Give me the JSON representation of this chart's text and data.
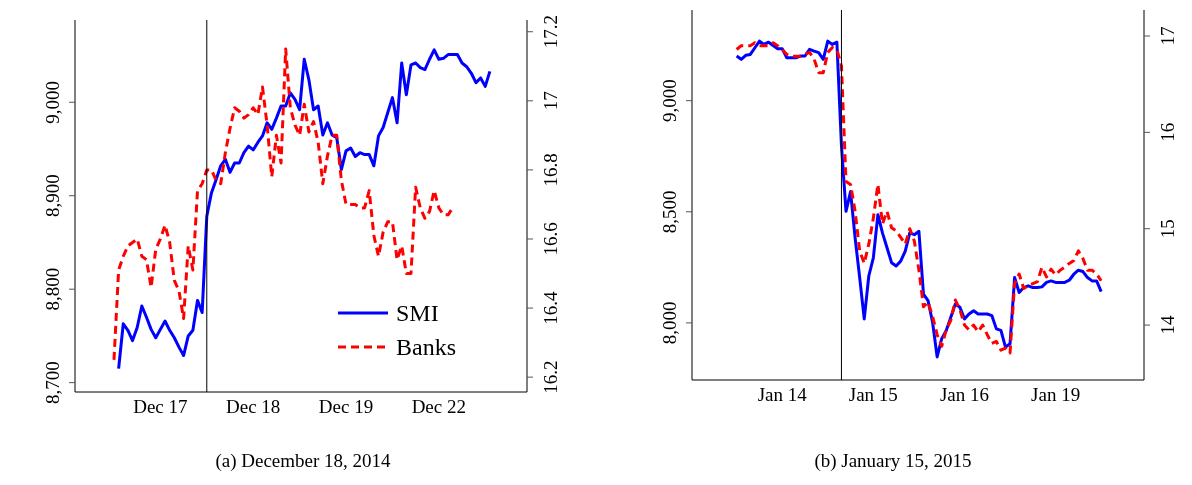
{
  "chart_data": [
    {
      "type": "line",
      "annotations": [
        "(a) December 18, 2014"
      ],
      "legend": "bottom right",
      "categories": [
        null,
        null,
        null,
        null,
        null,
        null,
        null,
        null,
        null,
        null,
        "Dec 17",
        null,
        null,
        null,
        null,
        null,
        null,
        null,
        null,
        null,
        null,
        null,
        null,
        null,
        null,
        null,
        null,
        null,
        null,
        null,
        "Dec 18",
        null,
        null,
        null,
        null,
        null,
        null,
        null,
        null,
        null,
        null,
        null,
        null,
        null,
        null,
        null,
        null,
        null,
        null,
        null,
        "Dec 19",
        null,
        null,
        null,
        null,
        null,
        null,
        null,
        null,
        null,
        null,
        null,
        null,
        null,
        null,
        null,
        null,
        null,
        null,
        null,
        "Dec 22",
        null,
        null,
        null,
        null,
        null,
        null,
        null,
        null,
        null,
        null,
        null
      ],
      "ylim": [
        8690,
        9088
      ],
      "yticks": [
        {
          "value": 8700,
          "label": "8,700"
        },
        {
          "value": 8800,
          "label": "8,800"
        },
        {
          "value": 8900,
          "label": "8,900"
        },
        {
          "value": 9000,
          "label": "9,000"
        }
      ],
      "y2lim": [
        16.157,
        17.234
      ],
      "y2ticks": [
        16.2,
        16.4,
        16.6,
        16.8,
        17,
        17.2
      ],
      "series": [
        {
          "name": "SMI",
          "type": "line",
          "color": "#0000ff",
          "line_style": "solid",
          "values": [
            null,
            8715,
            8763,
            8756,
            8745,
            8759,
            8782,
            8770,
            8757,
            8748,
            8757,
            8766,
            8756,
            8748,
            8738,
            8729,
            8750,
            8756,
            8788,
            8775,
            8878,
            8903,
            8917,
            8932,
            8939,
            8925,
            8935,
            8935,
            8946,
            8953,
            8949,
            8957,
            8964,
            8978,
            8971,
            8983,
            8996,
            8996,
            9010,
            9003,
            8992,
            9046,
            9024,
            8992,
            8996,
            8965,
            8978,
            8965,
            8962,
            8928,
            8948,
            8951,
            8942,
            8946,
            8944,
            8944,
            8932,
            8964,
            8973,
            8989,
            9005,
            8978,
            9042,
            9008,
            9040,
            9042,
            9037,
            9035,
            9046,
            9056,
            9046,
            9047,
            9051,
            9051,
            9051,
            9042,
            9038,
            9031,
            9021,
            9026,
            9017,
            9033
          ]
        },
        {
          "name": "Banks",
          "type": "line",
          "axis": "y2",
          "color": "#ff0000",
          "line_style": "dashed",
          "values": [
            16.25,
            16.51,
            16.55,
            16.58,
            16.59,
            16.6,
            16.55,
            16.54,
            16.46,
            16.57,
            16.6,
            16.64,
            16.59,
            16.48,
            16.45,
            16.37,
            16.58,
            16.51,
            16.74,
            16.76,
            16.8,
            16.8,
            16.77,
            16.76,
            16.85,
            16.92,
            16.98,
            16.97,
            16.95,
            16.96,
            16.98,
            16.96,
            17.04,
            16.93,
            16.78,
            16.9,
            16.82,
            17.15,
            16.98,
            16.93,
            16.9,
            16.99,
            16.91,
            16.94,
            16.88,
            16.76,
            16.84,
            16.9,
            16.9,
            16.77,
            16.7,
            16.7,
            16.7,
            16.69,
            16.69,
            16.74,
            16.61,
            16.55,
            16.62,
            16.65,
            16.65,
            16.54,
            16.58,
            16.5,
            16.5,
            16.75,
            16.69,
            16.66,
            16.68,
            16.74,
            16.69,
            16.67,
            16.67,
            16.69,
            null,
            null,
            null,
            null,
            null,
            null,
            null,
            null
          ]
        }
      ]
    },
    {
      "type": "line",
      "annotations": [
        "(b) January 15, 2015"
      ],
      "categories": [
        null,
        null,
        null,
        null,
        null,
        null,
        null,
        null,
        null,
        null,
        "Jan 14",
        null,
        null,
        null,
        null,
        null,
        null,
        null,
        null,
        null,
        null,
        null,
        null,
        null,
        null,
        null,
        null,
        null,
        null,
        null,
        "Jan 15",
        null,
        null,
        null,
        null,
        null,
        null,
        null,
        null,
        null,
        null,
        null,
        null,
        null,
        null,
        null,
        null,
        null,
        null,
        null,
        "Jan 16",
        null,
        null,
        null,
        null,
        null,
        null,
        null,
        null,
        null,
        null,
        null,
        null,
        null,
        null,
        null,
        null,
        null,
        null,
        null,
        "Jan 19",
        null,
        null,
        null,
        null,
        null,
        null,
        null,
        null,
        null,
        null
      ],
      "ylim": [
        7743,
        9408
      ],
      "yticks": [
        {
          "value": 8000,
          "label": "8,000"
        },
        {
          "value": 8500,
          "label": "8,500"
        },
        {
          "value": 9000,
          "label": "9,000"
        }
      ],
      "y2lim": [
        13.43,
        17.27
      ],
      "y2ticks": [
        14,
        15,
        16,
        17
      ],
      "series": [
        {
          "type": "line",
          "color": "#0000ff",
          "line_style": "solid",
          "values": [
            9201,
            9186,
            9204,
            9208,
            9238,
            9268,
            9253,
            9263,
            9248,
            9234,
            9234,
            9193,
            9193,
            9193,
            9201,
            9201,
            9231,
            9223,
            9216,
            9186,
            9268,
            9253,
            9263,
            8799,
            8502,
            8591,
            8382,
            8204,
            8018,
            8211,
            8293,
            8487,
            8405,
            8338,
            8271,
            8256,
            8278,
            8323,
            8405,
            8397,
            8412,
            8129,
            8100,
            8003,
            7847,
            7929,
            7966,
            8025,
            8085,
            8070,
            8018,
            8040,
            8055,
            8040,
            8040,
            8040,
            8033,
            7973,
            7966,
            7891,
            7906,
            8204,
            8137,
            8159,
            8167,
            8159,
            8159,
            8162,
            8182,
            8189,
            8182,
            8182,
            8182,
            8192,
            8219,
            8237,
            8231,
            8204,
            8189,
            8189,
            8141
          ]
        },
        {
          "type": "line",
          "axis": "y2",
          "color": "#ff0000",
          "line_style": "dashed",
          "values": [
            16.86,
            16.9,
            16.9,
            16.9,
            16.93,
            16.9,
            16.9,
            16.9,
            16.93,
            16.9,
            16.86,
            16.81,
            16.79,
            16.79,
            16.79,
            16.81,
            16.83,
            16.76,
            16.62,
            16.62,
            16.83,
            16.88,
            16.86,
            16.69,
            15.49,
            15.46,
            15.18,
            14.77,
            14.64,
            14.84,
            15.11,
            15.46,
            15.05,
            15.18,
            15.01,
            14.98,
            14.91,
            14.84,
            15,
            14.87,
            14.57,
            14.19,
            14.24,
            14.09,
            13.9,
            13.78,
            13.95,
            14.05,
            14.26,
            14.16,
            14,
            13.95,
            14,
            13.93,
            14,
            13.9,
            13.81,
            13.83,
            13.74,
            13.76,
            13.71,
            14.43,
            14.53,
            14.38,
            14.41,
            14.43,
            14.45,
            14.6,
            14.5,
            14.58,
            14.52,
            14.57,
            14.6,
            14.64,
            14.67,
            14.77,
            14.69,
            14.57,
            14.57,
            14.53,
            14.46
          ]
        }
      ]
    }
  ]
}
